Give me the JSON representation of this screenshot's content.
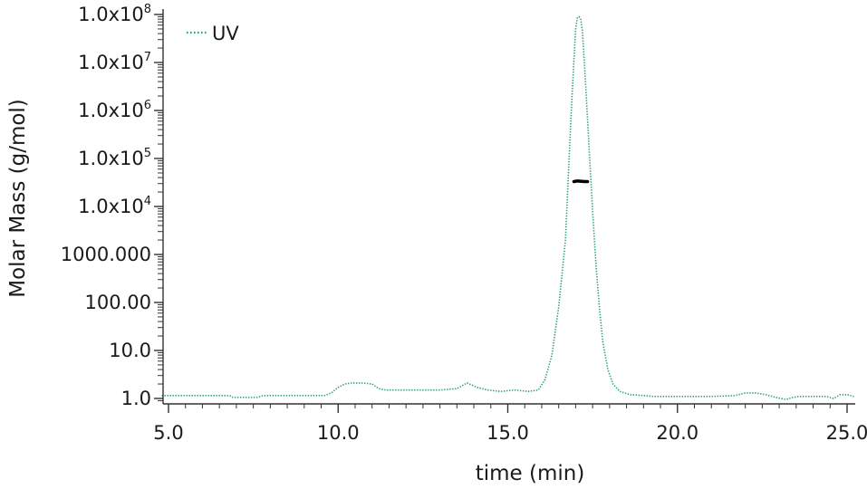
{
  "chart_data": {
    "type": "line",
    "title": "",
    "xlabel": "time (min)",
    "ylabel": "Molar Mass (g/mol)",
    "x_scale": "linear",
    "y_scale": "log",
    "xlim": [
      4.8,
      25.2
    ],
    "ylim": [
      0.85,
      100000000
    ],
    "x_ticks": [
      {
        "value": 5,
        "label": "5.0"
      },
      {
        "value": 10,
        "label": "10.0"
      },
      {
        "value": 15,
        "label": "15.0"
      },
      {
        "value": 20,
        "label": "20.0"
      },
      {
        "value": 25,
        "label": "25.0"
      }
    ],
    "y_ticks": [
      {
        "value": 1,
        "label": "1.0",
        "sup": ""
      },
      {
        "value": 10,
        "label": "10.0",
        "sup": ""
      },
      {
        "value": 100,
        "label": "100.00",
        "sup": ""
      },
      {
        "value": 1000,
        "label": "1000.000",
        "sup": ""
      },
      {
        "value": 10000,
        "label": "1.0x10",
        "sup": "4"
      },
      {
        "value": 100000,
        "label": "1.0x10",
        "sup": "5"
      },
      {
        "value": 1000000,
        "label": "1.0x10",
        "sup": "6"
      },
      {
        "value": 10000000,
        "label": "1.0x10",
        "sup": "7"
      },
      {
        "value": 100000000,
        "label": "1.0x10",
        "sup": "8"
      }
    ],
    "legend": {
      "position": "top-left",
      "entries": [
        {
          "label": "UV",
          "color": "#2e9e84",
          "style": "dotted"
        }
      ]
    },
    "grid": false,
    "series": [
      {
        "name": "UV",
        "color": "#2e9e84",
        "style": "dotted",
        "x": [
          4.8,
          6.8,
          6.9,
          7.6,
          7.8,
          9.6,
          9.8,
          10.0,
          10.2,
          10.4,
          10.7,
          11.0,
          11.2,
          11.4,
          12.0,
          13.0,
          13.5,
          13.8,
          14.1,
          14.4,
          14.8,
          15.2,
          15.6,
          15.9,
          16.1,
          16.3,
          16.5,
          16.7,
          16.8,
          16.9,
          17.0,
          17.05,
          17.1,
          17.15,
          17.2,
          17.3,
          17.4,
          17.5,
          17.6,
          17.7,
          17.8,
          17.95,
          18.1,
          18.3,
          18.6,
          19.0,
          19.3,
          20.0,
          21.0,
          21.7,
          22.0,
          22.3,
          22.6,
          22.9,
          23.2,
          23.4,
          23.6,
          24.4,
          24.6,
          24.8,
          25.0,
          25.2
        ],
        "y": [
          1.15,
          1.15,
          1.05,
          1.05,
          1.15,
          1.15,
          1.3,
          1.7,
          2.0,
          2.1,
          2.1,
          2.0,
          1.6,
          1.5,
          1.5,
          1.5,
          1.6,
          2.1,
          1.7,
          1.5,
          1.4,
          1.5,
          1.4,
          1.5,
          2.5,
          8,
          80,
          2000,
          80000,
          2500000,
          50000000,
          85000000,
          90000000,
          80000000,
          45000000,
          3000000,
          150000,
          8000,
          600,
          80,
          15,
          4,
          2,
          1.4,
          1.2,
          1.15,
          1.1,
          1.1,
          1.1,
          1.15,
          1.3,
          1.3,
          1.2,
          1.05,
          0.95,
          1.05,
          1.1,
          1.1,
          1.0,
          1.2,
          1.2,
          1.1
        ]
      },
      {
        "name": "",
        "color": "#000000",
        "style": "solid",
        "x": [
          16.95,
          17.05,
          17.15,
          17.25,
          17.35
        ],
        "y": [
          33000,
          34000,
          33500,
          33000,
          33000
        ]
      }
    ]
  }
}
